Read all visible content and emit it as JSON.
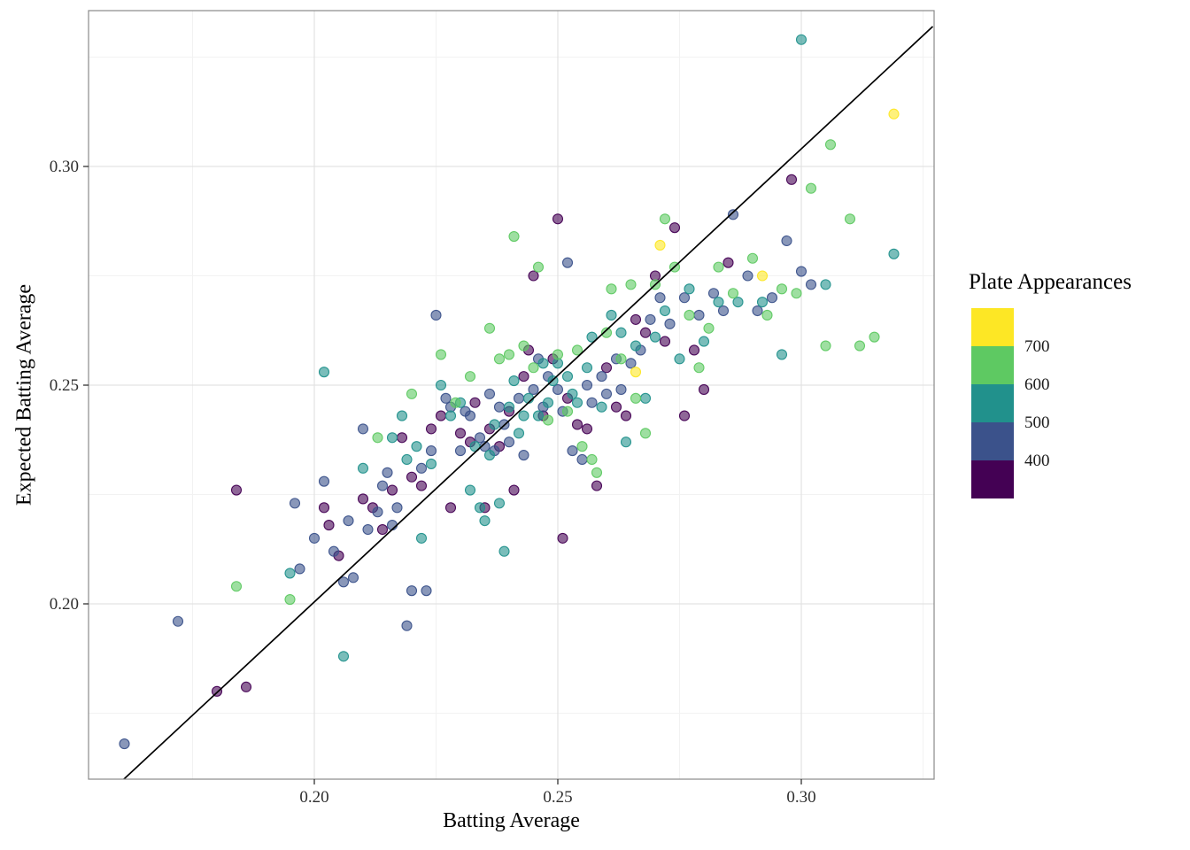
{
  "chart_data": {
    "type": "scatter",
    "title": "",
    "xlabel": "Batting Average",
    "ylabel": "Expected Batting Average",
    "xlim": [
      0.154,
      0.327
    ],
    "ylim": [
      0.16,
      0.336
    ],
    "x_ticks": [
      "0.20",
      "0.25",
      "0.30"
    ],
    "x_tick_values": [
      0.2,
      0.25,
      0.3
    ],
    "y_ticks": [
      "0.20",
      "0.25",
      "0.30"
    ],
    "y_tick_values": [
      0.2,
      0.25,
      0.3
    ],
    "x_minor_ticks": [
      0.175,
      0.225,
      0.275,
      0.325
    ],
    "y_minor_ticks": [
      0.175,
      0.225,
      0.275,
      0.325
    ],
    "grid": true,
    "point_alpha": 0.6,
    "reference_line": {
      "type": "identity",
      "x1": 0.16,
      "y1": 0.159,
      "x2": 0.327,
      "y2": 0.332,
      "color": "#000000"
    },
    "legend": {
      "title": "Plate Appearances",
      "position": "right",
      "tick_labels": [
        "700",
        "600",
        "500",
        "400"
      ],
      "colors_top_to_bottom": [
        "#fde725",
        "#5ec962",
        "#21918c",
        "#3b528b",
        "#440154"
      ]
    },
    "color_scale": {
      "field": "plate_appearances",
      "palette": "viridis",
      "bins": [
        {
          "min": 700,
          "color": "#fde725"
        },
        {
          "min": 600,
          "color": "#5ec962"
        },
        {
          "min": 500,
          "color": "#21918c"
        },
        {
          "min": 400,
          "color": "#3b528b"
        },
        {
          "min": 0,
          "color": "#440154"
        }
      ]
    },
    "points_format": [
      "batting_average",
      "expected_batting_average",
      "plate_appearances"
    ],
    "points": [
      [
        0.18,
        0.18,
        360
      ],
      [
        0.186,
        0.181,
        345
      ],
      [
        0.184,
        0.226,
        370
      ],
      [
        0.202,
        0.222,
        355
      ],
      [
        0.203,
        0.218,
        385
      ],
      [
        0.205,
        0.211,
        340
      ],
      [
        0.21,
        0.224,
        375
      ],
      [
        0.212,
        0.222,
        350
      ],
      [
        0.214,
        0.217,
        365
      ],
      [
        0.216,
        0.226,
        390
      ],
      [
        0.218,
        0.238,
        345
      ],
      [
        0.22,
        0.229,
        370
      ],
      [
        0.222,
        0.227,
        355
      ],
      [
        0.224,
        0.24,
        380
      ],
      [
        0.226,
        0.243,
        360
      ],
      [
        0.228,
        0.222,
        345
      ],
      [
        0.23,
        0.239,
        375
      ],
      [
        0.232,
        0.237,
        350
      ],
      [
        0.233,
        0.246,
        390
      ],
      [
        0.235,
        0.222,
        365
      ],
      [
        0.236,
        0.24,
        340
      ],
      [
        0.238,
        0.236,
        380
      ],
      [
        0.24,
        0.244,
        355
      ],
      [
        0.241,
        0.226,
        370
      ],
      [
        0.243,
        0.252,
        345
      ],
      [
        0.244,
        0.258,
        385
      ],
      [
        0.245,
        0.275,
        360
      ],
      [
        0.247,
        0.243,
        350
      ],
      [
        0.249,
        0.256,
        375
      ],
      [
        0.25,
        0.288,
        365
      ],
      [
        0.251,
        0.215,
        340
      ],
      [
        0.252,
        0.247,
        385
      ],
      [
        0.254,
        0.241,
        355
      ],
      [
        0.256,
        0.24,
        370
      ],
      [
        0.258,
        0.227,
        345
      ],
      [
        0.26,
        0.254,
        380
      ],
      [
        0.262,
        0.245,
        360
      ],
      [
        0.264,
        0.243,
        350
      ],
      [
        0.266,
        0.265,
        390
      ],
      [
        0.268,
        0.262,
        365
      ],
      [
        0.27,
        0.275,
        340
      ],
      [
        0.272,
        0.26,
        375
      ],
      [
        0.274,
        0.286,
        355
      ],
      [
        0.276,
        0.243,
        385
      ],
      [
        0.278,
        0.258,
        345
      ],
      [
        0.28,
        0.249,
        370
      ],
      [
        0.285,
        0.278,
        360
      ],
      [
        0.298,
        0.297,
        350
      ],
      [
        0.161,
        0.168,
        450
      ],
      [
        0.172,
        0.196,
        430
      ],
      [
        0.196,
        0.223,
        465
      ],
      [
        0.197,
        0.208,
        420
      ],
      [
        0.2,
        0.215,
        480
      ],
      [
        0.202,
        0.228,
        445
      ],
      [
        0.204,
        0.212,
        410
      ],
      [
        0.206,
        0.205,
        470
      ],
      [
        0.207,
        0.219,
        435
      ],
      [
        0.208,
        0.206,
        490
      ],
      [
        0.21,
        0.24,
        455
      ],
      [
        0.211,
        0.217,
        415
      ],
      [
        0.213,
        0.221,
        475
      ],
      [
        0.214,
        0.227,
        440
      ],
      [
        0.215,
        0.23,
        425
      ],
      [
        0.216,
        0.218,
        485
      ],
      [
        0.217,
        0.222,
        450
      ],
      [
        0.219,
        0.195,
        410
      ],
      [
        0.22,
        0.203,
        465
      ],
      [
        0.222,
        0.231,
        430
      ],
      [
        0.223,
        0.203,
        490
      ],
      [
        0.224,
        0.235,
        445
      ],
      [
        0.225,
        0.266,
        420
      ],
      [
        0.227,
        0.247,
        470
      ],
      [
        0.228,
        0.245,
        435
      ],
      [
        0.23,
        0.235,
        480
      ],
      [
        0.231,
        0.244,
        455
      ],
      [
        0.232,
        0.243,
        415
      ],
      [
        0.234,
        0.238,
        475
      ],
      [
        0.235,
        0.236,
        440
      ],
      [
        0.236,
        0.248,
        425
      ],
      [
        0.237,
        0.235,
        485
      ],
      [
        0.238,
        0.245,
        450
      ],
      [
        0.239,
        0.241,
        410
      ],
      [
        0.24,
        0.237,
        465
      ],
      [
        0.242,
        0.247,
        430
      ],
      [
        0.243,
        0.234,
        490
      ],
      [
        0.245,
        0.249,
        445
      ],
      [
        0.246,
        0.256,
        420
      ],
      [
        0.247,
        0.245,
        470
      ],
      [
        0.248,
        0.252,
        435
      ],
      [
        0.25,
        0.249,
        480
      ],
      [
        0.251,
        0.244,
        455
      ],
      [
        0.252,
        0.278,
        415
      ],
      [
        0.253,
        0.235,
        475
      ],
      [
        0.255,
        0.233,
        440
      ],
      [
        0.256,
        0.25,
        425
      ],
      [
        0.257,
        0.246,
        485
      ],
      [
        0.259,
        0.252,
        450
      ],
      [
        0.26,
        0.248,
        410
      ],
      [
        0.262,
        0.256,
        465
      ],
      [
        0.263,
        0.249,
        430
      ],
      [
        0.265,
        0.255,
        490
      ],
      [
        0.267,
        0.258,
        445
      ],
      [
        0.269,
        0.265,
        420
      ],
      [
        0.271,
        0.27,
        470
      ],
      [
        0.273,
        0.264,
        435
      ],
      [
        0.276,
        0.27,
        480
      ],
      [
        0.279,
        0.266,
        455
      ],
      [
        0.282,
        0.271,
        415
      ],
      [
        0.284,
        0.267,
        475
      ],
      [
        0.286,
        0.289,
        440
      ],
      [
        0.289,
        0.275,
        425
      ],
      [
        0.291,
        0.267,
        485
      ],
      [
        0.294,
        0.27,
        450
      ],
      [
        0.297,
        0.283,
        410
      ],
      [
        0.3,
        0.276,
        465
      ],
      [
        0.302,
        0.273,
        430
      ],
      [
        0.195,
        0.207,
        520
      ],
      [
        0.202,
        0.253,
        550
      ],
      [
        0.206,
        0.188,
        510
      ],
      [
        0.21,
        0.231,
        565
      ],
      [
        0.216,
        0.238,
        530
      ],
      [
        0.218,
        0.243,
        585
      ],
      [
        0.219,
        0.233,
        545
      ],
      [
        0.221,
        0.236,
        505
      ],
      [
        0.222,
        0.215,
        570
      ],
      [
        0.224,
        0.232,
        535
      ],
      [
        0.226,
        0.25,
        590
      ],
      [
        0.228,
        0.243,
        550
      ],
      [
        0.23,
        0.246,
        515
      ],
      [
        0.232,
        0.226,
        575
      ],
      [
        0.233,
        0.236,
        540
      ],
      [
        0.234,
        0.222,
        595
      ],
      [
        0.235,
        0.219,
        555
      ],
      [
        0.236,
        0.234,
        520
      ],
      [
        0.237,
        0.241,
        580
      ],
      [
        0.238,
        0.223,
        545
      ],
      [
        0.239,
        0.212,
        505
      ],
      [
        0.24,
        0.245,
        565
      ],
      [
        0.241,
        0.251,
        530
      ],
      [
        0.242,
        0.239,
        590
      ],
      [
        0.243,
        0.243,
        555
      ],
      [
        0.244,
        0.247,
        515
      ],
      [
        0.246,
        0.243,
        575
      ],
      [
        0.247,
        0.255,
        540
      ],
      [
        0.248,
        0.246,
        595
      ],
      [
        0.249,
        0.251,
        560
      ],
      [
        0.25,
        0.255,
        525
      ],
      [
        0.252,
        0.252,
        585
      ],
      [
        0.253,
        0.248,
        545
      ],
      [
        0.254,
        0.246,
        510
      ],
      [
        0.256,
        0.254,
        570
      ],
      [
        0.257,
        0.261,
        535
      ],
      [
        0.259,
        0.245,
        590
      ],
      [
        0.261,
        0.266,
        550
      ],
      [
        0.263,
        0.262,
        515
      ],
      [
        0.264,
        0.237,
        575
      ],
      [
        0.266,
        0.259,
        540
      ],
      [
        0.268,
        0.247,
        595
      ],
      [
        0.27,
        0.261,
        555
      ],
      [
        0.272,
        0.267,
        520
      ],
      [
        0.275,
        0.256,
        580
      ],
      [
        0.277,
        0.272,
        545
      ],
      [
        0.28,
        0.26,
        505
      ],
      [
        0.283,
        0.269,
        565
      ],
      [
        0.287,
        0.269,
        530
      ],
      [
        0.292,
        0.269,
        590
      ],
      [
        0.296,
        0.257,
        555
      ],
      [
        0.3,
        0.329,
        515
      ],
      [
        0.305,
        0.273,
        575
      ],
      [
        0.319,
        0.28,
        540
      ],
      [
        0.184,
        0.204,
        620
      ],
      [
        0.195,
        0.201,
        650
      ],
      [
        0.213,
        0.238,
        610
      ],
      [
        0.22,
        0.248,
        665
      ],
      [
        0.226,
        0.257,
        630
      ],
      [
        0.229,
        0.246,
        685
      ],
      [
        0.232,
        0.252,
        645
      ],
      [
        0.236,
        0.263,
        605
      ],
      [
        0.238,
        0.256,
        670
      ],
      [
        0.24,
        0.257,
        635
      ],
      [
        0.241,
        0.284,
        690
      ],
      [
        0.243,
        0.259,
        650
      ],
      [
        0.245,
        0.254,
        615
      ],
      [
        0.246,
        0.277,
        675
      ],
      [
        0.248,
        0.242,
        640
      ],
      [
        0.25,
        0.257,
        695
      ],
      [
        0.252,
        0.244,
        655
      ],
      [
        0.254,
        0.258,
        620
      ],
      [
        0.255,
        0.236,
        680
      ],
      [
        0.257,
        0.233,
        645
      ],
      [
        0.258,
        0.23,
        605
      ],
      [
        0.26,
        0.262,
        665
      ],
      [
        0.261,
        0.272,
        630
      ],
      [
        0.263,
        0.256,
        690
      ],
      [
        0.265,
        0.273,
        650
      ],
      [
        0.266,
        0.247,
        615
      ],
      [
        0.268,
        0.239,
        675
      ],
      [
        0.27,
        0.273,
        640
      ],
      [
        0.272,
        0.288,
        695
      ],
      [
        0.274,
        0.277,
        655
      ],
      [
        0.277,
        0.266,
        620
      ],
      [
        0.279,
        0.254,
        680
      ],
      [
        0.281,
        0.263,
        645
      ],
      [
        0.283,
        0.277,
        605
      ],
      [
        0.286,
        0.271,
        665
      ],
      [
        0.29,
        0.279,
        630
      ],
      [
        0.293,
        0.266,
        690
      ],
      [
        0.296,
        0.272,
        650
      ],
      [
        0.299,
        0.271,
        615
      ],
      [
        0.302,
        0.295,
        675
      ],
      [
        0.305,
        0.259,
        640
      ],
      [
        0.306,
        0.305,
        695
      ],
      [
        0.31,
        0.288,
        655
      ],
      [
        0.312,
        0.259,
        620
      ],
      [
        0.315,
        0.261,
        680
      ],
      [
        0.266,
        0.253,
        705
      ],
      [
        0.271,
        0.282,
        730
      ],
      [
        0.292,
        0.275,
        755
      ],
      [
        0.319,
        0.312,
        710
      ]
    ]
  }
}
